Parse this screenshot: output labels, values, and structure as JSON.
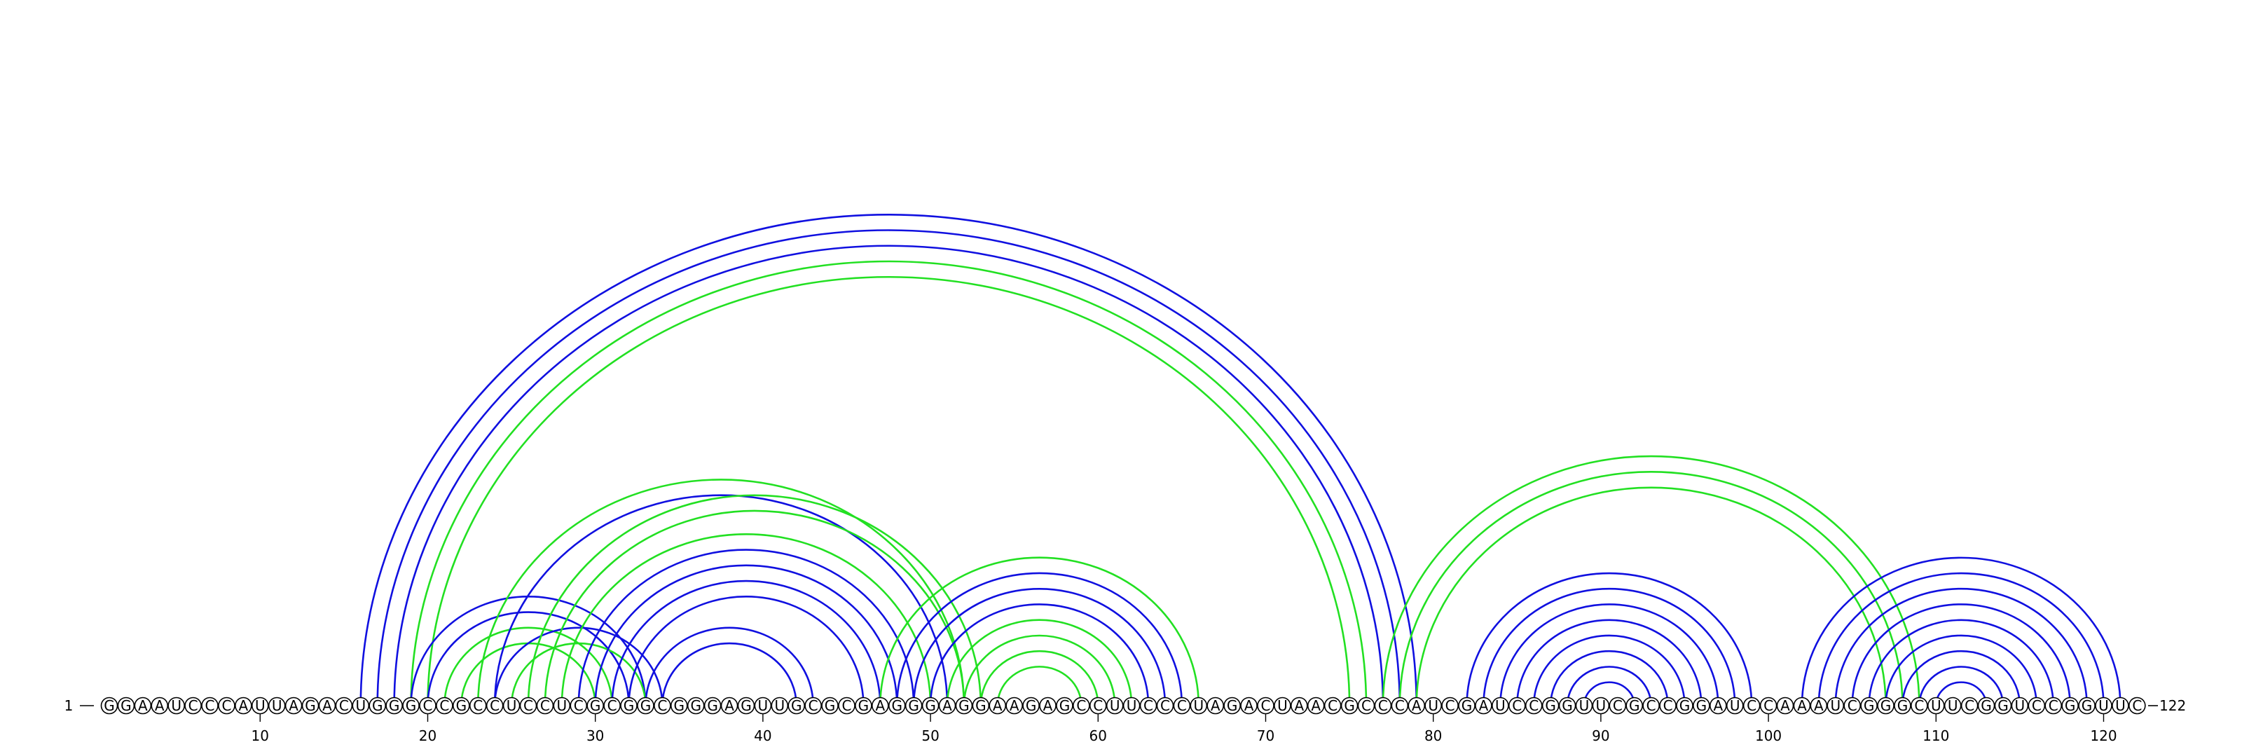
{
  "diagram": {
    "type": "rna-arc-diagram",
    "sequence": "GGAAUCCCAUUAGACUGGGCCGCCUCCUCGCGGCGGGAGUUGCGCGAGGGAGGAAGAGCCUUCCCUAGACUAACGCCCAUCGAUCCGGUUCGCCGGAUCCAAAUCGGGCUUCGGUCCGGUUC",
    "start_label": "1",
    "end_label": "122",
    "tick_labels": [
      10,
      20,
      30,
      40,
      50,
      60,
      70,
      80,
      90,
      100,
      110,
      120
    ],
    "colors": {
      "blue": "#1010e0",
      "green": "#22e022"
    },
    "arcs": [
      {
        "i": 16,
        "j": 79,
        "color": "blue"
      },
      {
        "i": 17,
        "j": 78,
        "color": "blue"
      },
      {
        "i": 18,
        "j": 77,
        "color": "blue"
      },
      {
        "i": 19,
        "j": 76,
        "color": "green"
      },
      {
        "i": 20,
        "j": 75,
        "color": "green"
      },
      {
        "i": 19,
        "j": 33,
        "color": "blue"
      },
      {
        "i": 20,
        "j": 32,
        "color": "blue"
      },
      {
        "i": 21,
        "j": 31,
        "color": "green"
      },
      {
        "i": 22,
        "j": 30,
        "color": "green"
      },
      {
        "i": 23,
        "j": 52,
        "color": "green"
      },
      {
        "i": 24,
        "j": 51,
        "color": "blue"
      },
      {
        "i": 24,
        "j": 34,
        "color": "blue"
      },
      {
        "i": 25,
        "j": 33,
        "color": "green"
      },
      {
        "i": 26,
        "j": 53,
        "color": "green"
      },
      {
        "i": 27,
        "j": 52,
        "color": "green"
      },
      {
        "i": 28,
        "j": 50,
        "color": "green"
      },
      {
        "i": 29,
        "j": 49,
        "color": "blue"
      },
      {
        "i": 30,
        "j": 48,
        "color": "blue"
      },
      {
        "i": 31,
        "j": 47,
        "color": "blue"
      },
      {
        "i": 32,
        "j": 46,
        "color": "blue"
      },
      {
        "i": 33,
        "j": 43,
        "color": "blue"
      },
      {
        "i": 34,
        "j": 42,
        "color": "blue"
      },
      {
        "i": 47,
        "j": 66,
        "color": "green"
      },
      {
        "i": 48,
        "j": 65,
        "color": "blue"
      },
      {
        "i": 49,
        "j": 64,
        "color": "blue"
      },
      {
        "i": 50,
        "j": 63,
        "color": "blue"
      },
      {
        "i": 51,
        "j": 62,
        "color": "green"
      },
      {
        "i": 52,
        "j": 61,
        "color": "green"
      },
      {
        "i": 53,
        "j": 60,
        "color": "green"
      },
      {
        "i": 54,
        "j": 59,
        "color": "green"
      },
      {
        "i": 77,
        "j": 109,
        "color": "green"
      },
      {
        "i": 78,
        "j": 108,
        "color": "green"
      },
      {
        "i": 79,
        "j": 107,
        "color": "green"
      },
      {
        "i": 82,
        "j": 99,
        "color": "blue"
      },
      {
        "i": 83,
        "j": 98,
        "color": "blue"
      },
      {
        "i": 84,
        "j": 97,
        "color": "blue"
      },
      {
        "i": 85,
        "j": 96,
        "color": "blue"
      },
      {
        "i": 86,
        "j": 95,
        "color": "blue"
      },
      {
        "i": 87,
        "j": 94,
        "color": "blue"
      },
      {
        "i": 88,
        "j": 93,
        "color": "blue"
      },
      {
        "i": 89,
        "j": 92,
        "color": "blue"
      },
      {
        "i": 102,
        "j": 121,
        "color": "blue"
      },
      {
        "i": 103,
        "j": 120,
        "color": "blue"
      },
      {
        "i": 104,
        "j": 119,
        "color": "blue"
      },
      {
        "i": 105,
        "j": 118,
        "color": "blue"
      },
      {
        "i": 106,
        "j": 117,
        "color": "blue"
      },
      {
        "i": 107,
        "j": 116,
        "color": "blue"
      },
      {
        "i": 108,
        "j": 115,
        "color": "blue"
      },
      {
        "i": 109,
        "j": 114,
        "color": "blue"
      },
      {
        "i": 110,
        "j": 113,
        "color": "blue"
      }
    ]
  }
}
